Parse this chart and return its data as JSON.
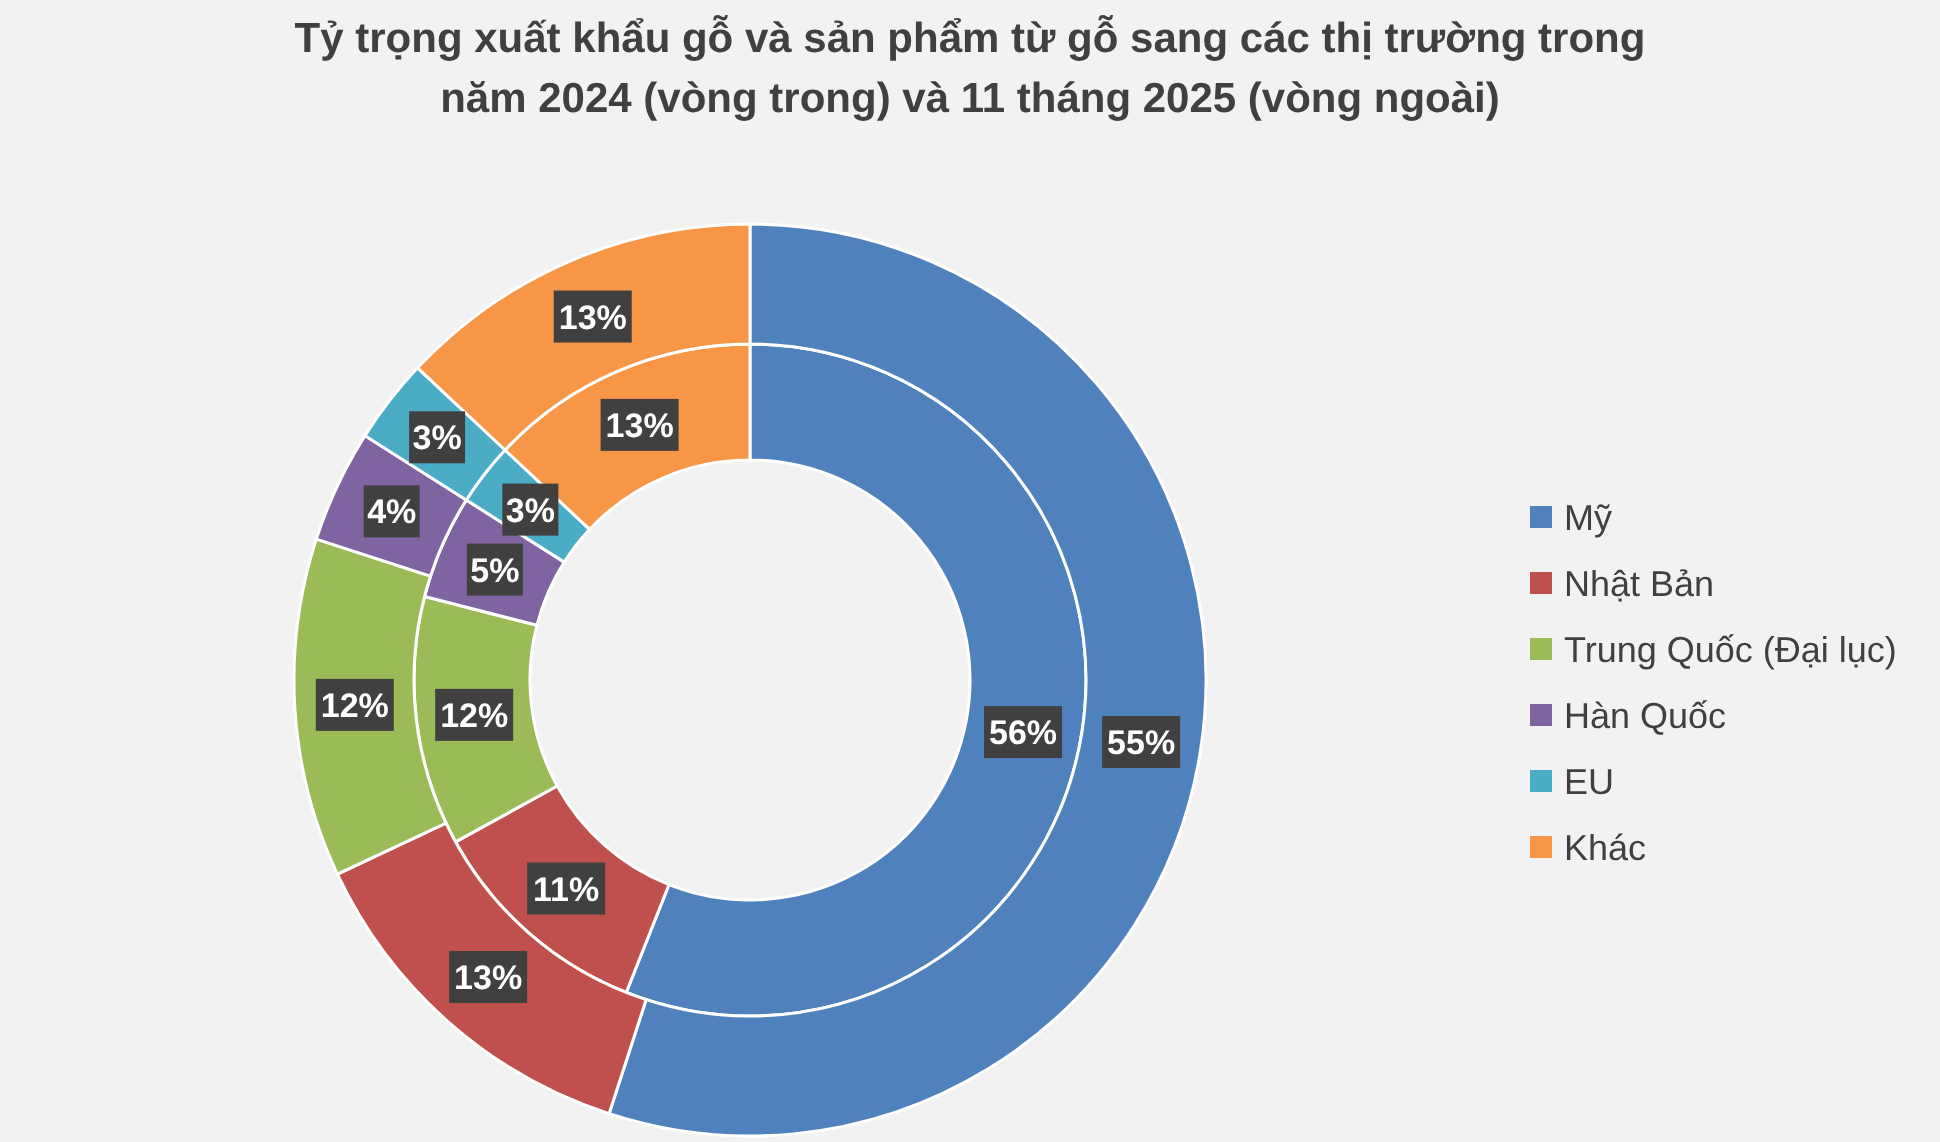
{
  "chart_data": {
    "type": "donut",
    "title": "Tỷ trọng xuất khẩu gỗ và sản phẩm từ gỗ sang các thị trường trong năm 2024 (vòng trong) và 11 tháng 2025 (vòng ngoài)",
    "categories": [
      "Mỹ",
      "Nhật Bản",
      "Trung Quốc (Đại lục)",
      "Hàn Quốc",
      "EU",
      "Khác"
    ],
    "colors": [
      "#4f81bd",
      "#c0504d",
      "#9bbb59",
      "#8064a2",
      "#4bacc6",
      "#f79646"
    ],
    "series": [
      {
        "values": [
          56,
          11,
          12,
          5,
          3,
          13
        ],
        "value_labels": [
          "56%",
          "11%",
          "12%",
          "5%",
          "3%",
          "13%"
        ]
      },
      {
        "values": [
          55,
          13,
          12,
          4,
          3,
          13
        ],
        "value_labels": [
          "55%",
          "13%",
          "12%",
          "4%",
          "3%",
          "13%"
        ]
      }
    ],
    "legend": "right"
  }
}
